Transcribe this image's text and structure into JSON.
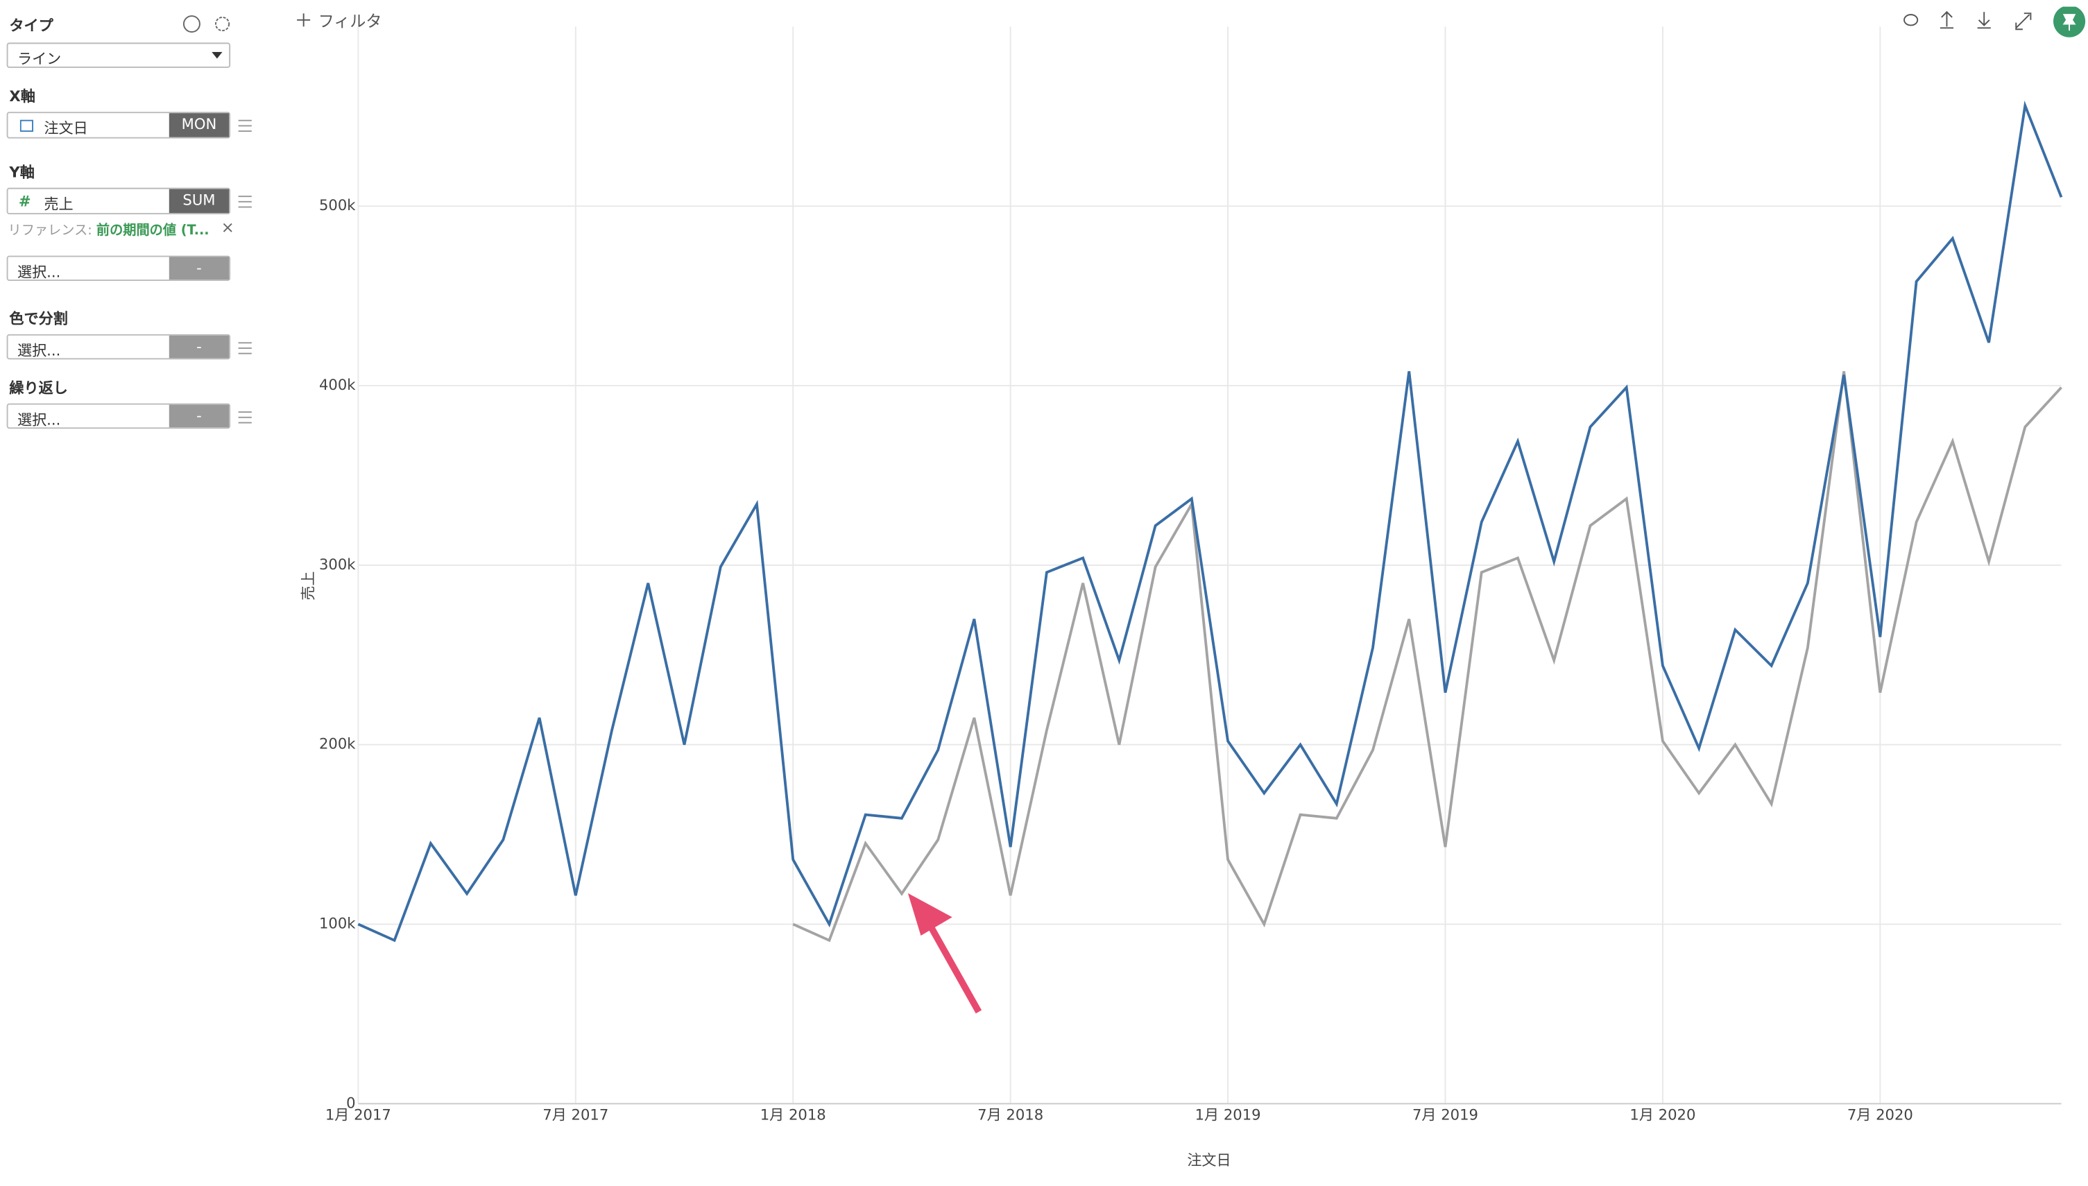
{
  "sidebar": {
    "type_label": "タイプ",
    "type_value": "ライン",
    "x_label": "X軸",
    "x_field": "注文日",
    "x_agg": "MON",
    "y_label": "Y軸",
    "y_icon": "#",
    "y_field": "売上",
    "y_agg": "SUM",
    "reference_prefix": "リファレンス: ",
    "reference_value": "前の期間の値 (T...",
    "select_placeholder": "選択...",
    "empty_agg": "-",
    "color_label": "色で分割",
    "repeat_label": "繰り返し"
  },
  "toolbar": {
    "filter": "フィルタ"
  },
  "chart_data": {
    "type": "line",
    "x_label": "注文日",
    "y_label": "売上",
    "x": [
      "2017-01",
      "2017-02",
      "2017-03",
      "2017-04",
      "2017-05",
      "2017-06",
      "2017-07",
      "2017-08",
      "2017-09",
      "2017-10",
      "2017-11",
      "2017-12",
      "2018-01",
      "2018-02",
      "2018-03",
      "2018-04",
      "2018-05",
      "2018-06",
      "2018-07",
      "2018-08",
      "2018-09",
      "2018-10",
      "2018-11",
      "2018-12",
      "2019-01",
      "2019-02",
      "2019-03",
      "2019-04",
      "2019-05",
      "2019-06",
      "2019-07",
      "2019-08",
      "2019-09",
      "2019-10",
      "2019-11",
      "2019-12",
      "2020-01",
      "2020-02",
      "2020-03",
      "2020-04",
      "2020-05",
      "2020-06",
      "2020-07",
      "2020-08",
      "2020-09",
      "2020-10",
      "2020-11",
      "2020-12"
    ],
    "series": [
      {
        "color": "#3a6ea5",
        "values": [
          100000,
          91000,
          145000,
          117000,
          147000,
          215000,
          116000,
          208000,
          290000,
          200000,
          299000,
          334000,
          136000,
          100000,
          161000,
          159000,
          197000,
          270000,
          143000,
          296000,
          304000,
          247000,
          322000,
          337000,
          202000,
          173000,
          200000,
          167000,
          254000,
          408000,
          229000,
          324000,
          369000,
          302000,
          377000,
          399000,
          244000,
          198000,
          264000,
          244000,
          290000,
          406000,
          260000,
          458000,
          482000,
          424000,
          556000,
          505000
        ]
      },
      {
        "color": "#a3a3a3",
        "values": [
          null,
          null,
          null,
          null,
          null,
          null,
          null,
          null,
          null,
          null,
          null,
          null,
          100000,
          91000,
          145000,
          117000,
          147000,
          215000,
          116000,
          208000,
          290000,
          200000,
          299000,
          334000,
          136000,
          100000,
          161000,
          159000,
          197000,
          270000,
          143000,
          296000,
          304000,
          247000,
          322000,
          337000,
          202000,
          173000,
          200000,
          167000,
          254000,
          408000,
          229000,
          324000,
          369000,
          302000,
          377000,
          399000
        ]
      }
    ],
    "xlim": [
      "2017-01",
      "2020-12"
    ],
    "xticks": [
      {
        "value": "2017-01",
        "label": "1月 2017"
      },
      {
        "value": "2017-07",
        "label": "7月 2017"
      },
      {
        "value": "2018-01",
        "label": "1月 2018"
      },
      {
        "value": "2018-07",
        "label": "7月 2018"
      },
      {
        "value": "2019-01",
        "label": "1月 2019"
      },
      {
        "value": "2019-07",
        "label": "7月 2019"
      },
      {
        "value": "2020-01",
        "label": "1月 2020"
      },
      {
        "value": "2020-07",
        "label": "7月 2020"
      }
    ],
    "ylim": [
      0,
      600000
    ],
    "yticks": [
      0,
      {
        "value": 100000,
        "label": "100k"
      },
      {
        "value": 200000,
        "label": "200k"
      },
      {
        "value": 300000,
        "label": "300k"
      },
      {
        "value": 400000,
        "label": "400k"
      },
      {
        "value": 500000,
        "label": "500k"
      }
    ],
    "grid": true
  }
}
